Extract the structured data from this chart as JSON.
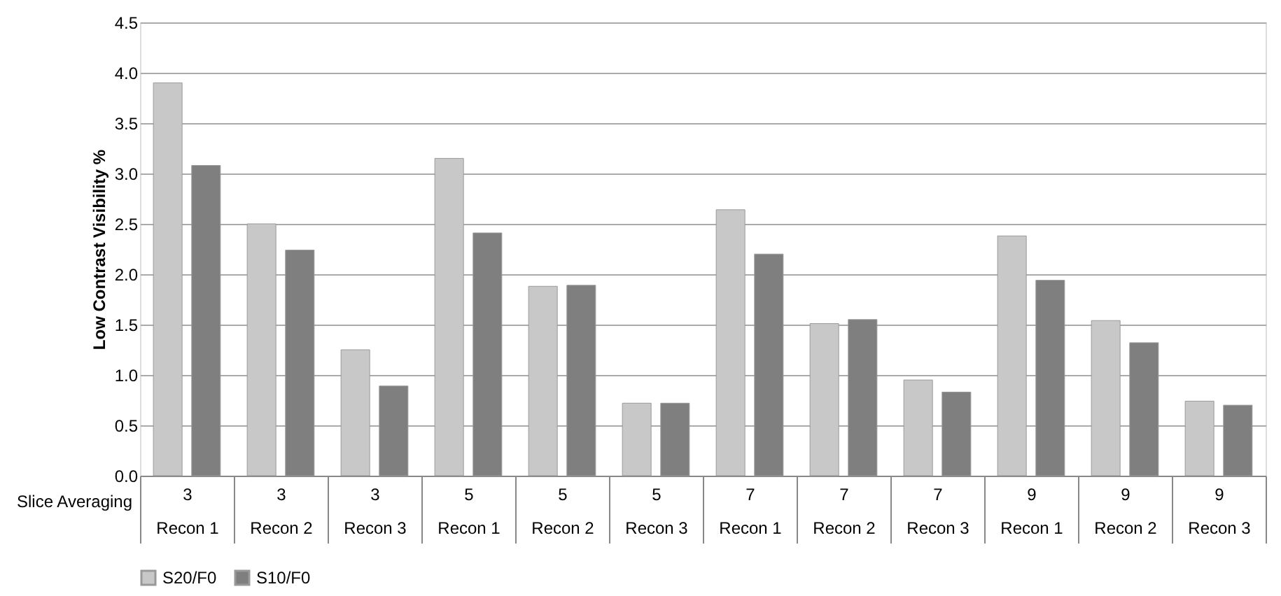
{
  "chart_data": {
    "type": "bar",
    "ylabel": "Low Contrast Visibility %",
    "xlabel": "Slice Averaging",
    "categories": [
      "3\nRecon 1",
      "3\nRecon 2",
      "3\nRecon 3",
      "5\nRecon 1",
      "5\nRecon 2",
      "5\nRecon 3",
      "7\nRecon 1",
      "7\nRecon 2",
      "7\nRecon 3",
      "9\nRecon 1",
      "9\nRecon 2",
      "9\nRecon 3"
    ],
    "series": [
      {
        "name": "S20/F0",
        "color": "#c8c8c8",
        "values": [
          3.9,
          2.5,
          1.25,
          3.15,
          1.88,
          0.72,
          2.64,
          1.51,
          0.95,
          2.38,
          1.54,
          0.74
        ]
      },
      {
        "name": "S10/F0",
        "color": "#7f7f7f",
        "values": [
          3.08,
          2.24,
          0.89,
          2.41,
          1.89,
          0.72,
          2.2,
          1.55,
          0.83,
          1.94,
          1.32,
          0.7
        ]
      }
    ],
    "ylim": [
      0,
      4.5
    ],
    "yticks": [
      {
        "value": 0,
        "label": "0.0"
      },
      0.5,
      {
        "value": 1,
        "label": "1.0"
      },
      1.5,
      {
        "value": 2,
        "label": "2.0"
      },
      2.5,
      {
        "value": 3,
        "label": "3.0"
      },
      3.5,
      {
        "value": 4,
        "label": "4.0"
      },
      4.5
    ],
    "grid": "y",
    "legend": "bottom"
  }
}
